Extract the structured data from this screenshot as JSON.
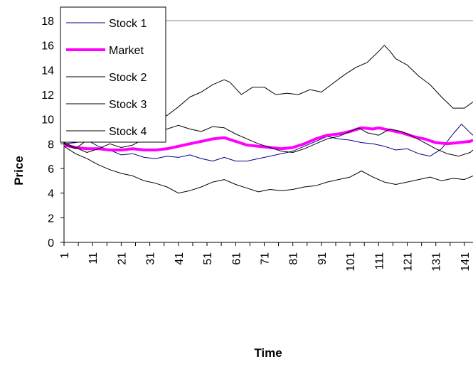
{
  "chart_data": {
    "type": "line",
    "xlabel": "Time",
    "ylabel": "Price",
    "ylim": [
      0,
      18
    ],
    "yticks": [
      0,
      2,
      4,
      6,
      8,
      10,
      12,
      14,
      16,
      18
    ],
    "xlim": [
      1,
      144
    ],
    "xticks": [
      1,
      11,
      21,
      31,
      41,
      51,
      61,
      71,
      81,
      91,
      101,
      111,
      121,
      131,
      141
    ],
    "grid": false,
    "legend_position": "top-left",
    "series": [
      {
        "name": "Stock 1",
        "color": "#000080",
        "width": 1,
        "points": [
          [
            1,
            8.0
          ],
          [
            5,
            8.1
          ],
          [
            9,
            8.3
          ],
          [
            13,
            7.8
          ],
          [
            17,
            7.5
          ],
          [
            21,
            7.1
          ],
          [
            25,
            7.2
          ],
          [
            29,
            6.9
          ],
          [
            33,
            6.8
          ],
          [
            37,
            7.0
          ],
          [
            41,
            6.9
          ],
          [
            45,
            7.1
          ],
          [
            49,
            6.8
          ],
          [
            53,
            6.6
          ],
          [
            57,
            6.9
          ],
          [
            61,
            6.6
          ],
          [
            65,
            6.6
          ],
          [
            69,
            6.8
          ],
          [
            73,
            7.0
          ],
          [
            77,
            7.2
          ],
          [
            81,
            7.4
          ],
          [
            85,
            7.8
          ],
          [
            89,
            8.2
          ],
          [
            93,
            8.6
          ],
          [
            97,
            8.4
          ],
          [
            101,
            8.3
          ],
          [
            105,
            8.1
          ],
          [
            109,
            8.0
          ],
          [
            113,
            7.8
          ],
          [
            117,
            7.5
          ],
          [
            121,
            7.6
          ],
          [
            125,
            7.2
          ],
          [
            129,
            7.0
          ],
          [
            133,
            7.6
          ],
          [
            137,
            8.8
          ],
          [
            140,
            9.6
          ],
          [
            143,
            8.9
          ],
          [
            144,
            8.7
          ]
        ]
      },
      {
        "name": "Market",
        "color": "#ff00ff",
        "width": 4,
        "points": [
          [
            1,
            7.9
          ],
          [
            5,
            7.7
          ],
          [
            9,
            7.6
          ],
          [
            13,
            7.6
          ],
          [
            17,
            7.5
          ],
          [
            21,
            7.5
          ],
          [
            25,
            7.6
          ],
          [
            29,
            7.5
          ],
          [
            33,
            7.5
          ],
          [
            37,
            7.6
          ],
          [
            41,
            7.8
          ],
          [
            45,
            8.0
          ],
          [
            49,
            8.2
          ],
          [
            53,
            8.4
          ],
          [
            57,
            8.5
          ],
          [
            61,
            8.2
          ],
          [
            65,
            7.9
          ],
          [
            69,
            7.8
          ],
          [
            73,
            7.7
          ],
          [
            77,
            7.6
          ],
          [
            81,
            7.7
          ],
          [
            85,
            8.0
          ],
          [
            89,
            8.4
          ],
          [
            93,
            8.7
          ],
          [
            97,
            8.8
          ],
          [
            101,
            9.0
          ],
          [
            105,
            9.3
          ],
          [
            109,
            9.2
          ],
          [
            111,
            9.3
          ],
          [
            115,
            9.1
          ],
          [
            119,
            8.9
          ],
          [
            123,
            8.6
          ],
          [
            127,
            8.4
          ],
          [
            131,
            8.1
          ],
          [
            135,
            8.0
          ],
          [
            139,
            8.1
          ],
          [
            143,
            8.2
          ],
          [
            144,
            8.3
          ]
        ]
      },
      {
        "name": "Stock 2",
        "color": "#000000",
        "width": 1,
        "points": [
          [
            1,
            8.0
          ],
          [
            5,
            7.6
          ],
          [
            9,
            8.3
          ],
          [
            13,
            8.8
          ],
          [
            17,
            8.9
          ],
          [
            21,
            9.3
          ],
          [
            25,
            9.5
          ],
          [
            29,
            9.7
          ],
          [
            33,
            10.0
          ],
          [
            37,
            10.3
          ],
          [
            41,
            11.0
          ],
          [
            45,
            11.8
          ],
          [
            49,
            12.2
          ],
          [
            53,
            12.8
          ],
          [
            57,
            13.2
          ],
          [
            59,
            13.0
          ],
          [
            61,
            12.5
          ],
          [
            63,
            12.0
          ],
          [
            67,
            12.6
          ],
          [
            71,
            12.6
          ],
          [
            75,
            12.0
          ],
          [
            79,
            12.1
          ],
          [
            83,
            12.0
          ],
          [
            87,
            12.4
          ],
          [
            91,
            12.2
          ],
          [
            95,
            12.9
          ],
          [
            99,
            13.6
          ],
          [
            103,
            14.2
          ],
          [
            107,
            14.6
          ],
          [
            111,
            15.5
          ],
          [
            113,
            16.0
          ],
          [
            115,
            15.5
          ],
          [
            117,
            14.9
          ],
          [
            121,
            14.4
          ],
          [
            125,
            13.5
          ],
          [
            129,
            12.8
          ],
          [
            133,
            11.8
          ],
          [
            137,
            10.9
          ],
          [
            141,
            10.9
          ],
          [
            144,
            11.4
          ]
        ]
      },
      {
        "name": "Stock 3",
        "color": "#000000",
        "width": 1,
        "points": [
          [
            1,
            7.8
          ],
          [
            5,
            7.2
          ],
          [
            9,
            6.8
          ],
          [
            13,
            6.3
          ],
          [
            17,
            5.9
          ],
          [
            21,
            5.6
          ],
          [
            25,
            5.4
          ],
          [
            29,
            5.0
          ],
          [
            33,
            4.8
          ],
          [
            37,
            4.5
          ],
          [
            41,
            4.0
          ],
          [
            45,
            4.2
          ],
          [
            49,
            4.5
          ],
          [
            53,
            4.9
          ],
          [
            57,
            5.1
          ],
          [
            61,
            4.7
          ],
          [
            65,
            4.4
          ],
          [
            69,
            4.1
          ],
          [
            73,
            4.3
          ],
          [
            77,
            4.2
          ],
          [
            81,
            4.3
          ],
          [
            85,
            4.5
          ],
          [
            89,
            4.6
          ],
          [
            93,
            4.9
          ],
          [
            97,
            5.1
          ],
          [
            101,
            5.3
          ],
          [
            105,
            5.8
          ],
          [
            109,
            5.3
          ],
          [
            113,
            4.9
          ],
          [
            117,
            4.7
          ],
          [
            121,
            4.9
          ],
          [
            125,
            5.1
          ],
          [
            129,
            5.3
          ],
          [
            133,
            5.0
          ],
          [
            137,
            5.2
          ],
          [
            141,
            5.1
          ],
          [
            144,
            5.4
          ]
        ]
      },
      {
        "name": "Stock 4",
        "color": "#000000",
        "width": 1,
        "points": [
          [
            1,
            8.1
          ],
          [
            5,
            7.7
          ],
          [
            9,
            7.3
          ],
          [
            13,
            7.6
          ],
          [
            17,
            8.0
          ],
          [
            21,
            7.7
          ],
          [
            25,
            7.9
          ],
          [
            29,
            8.4
          ],
          [
            33,
            8.9
          ],
          [
            37,
            9.2
          ],
          [
            41,
            9.5
          ],
          [
            45,
            9.2
          ],
          [
            49,
            9.0
          ],
          [
            53,
            9.4
          ],
          [
            57,
            9.3
          ],
          [
            61,
            8.8
          ],
          [
            65,
            8.4
          ],
          [
            69,
            8.0
          ],
          [
            73,
            7.7
          ],
          [
            77,
            7.4
          ],
          [
            81,
            7.3
          ],
          [
            85,
            7.6
          ],
          [
            89,
            8.0
          ],
          [
            93,
            8.4
          ],
          [
            97,
            8.6
          ],
          [
            101,
            9.0
          ],
          [
            104,
            9.3
          ],
          [
            107,
            8.9
          ],
          [
            111,
            8.7
          ],
          [
            115,
            9.2
          ],
          [
            119,
            9.0
          ],
          [
            123,
            8.6
          ],
          [
            127,
            8.1
          ],
          [
            131,
            7.6
          ],
          [
            135,
            7.2
          ],
          [
            139,
            7.0
          ],
          [
            143,
            7.3
          ],
          [
            144,
            7.5
          ]
        ]
      }
    ]
  }
}
